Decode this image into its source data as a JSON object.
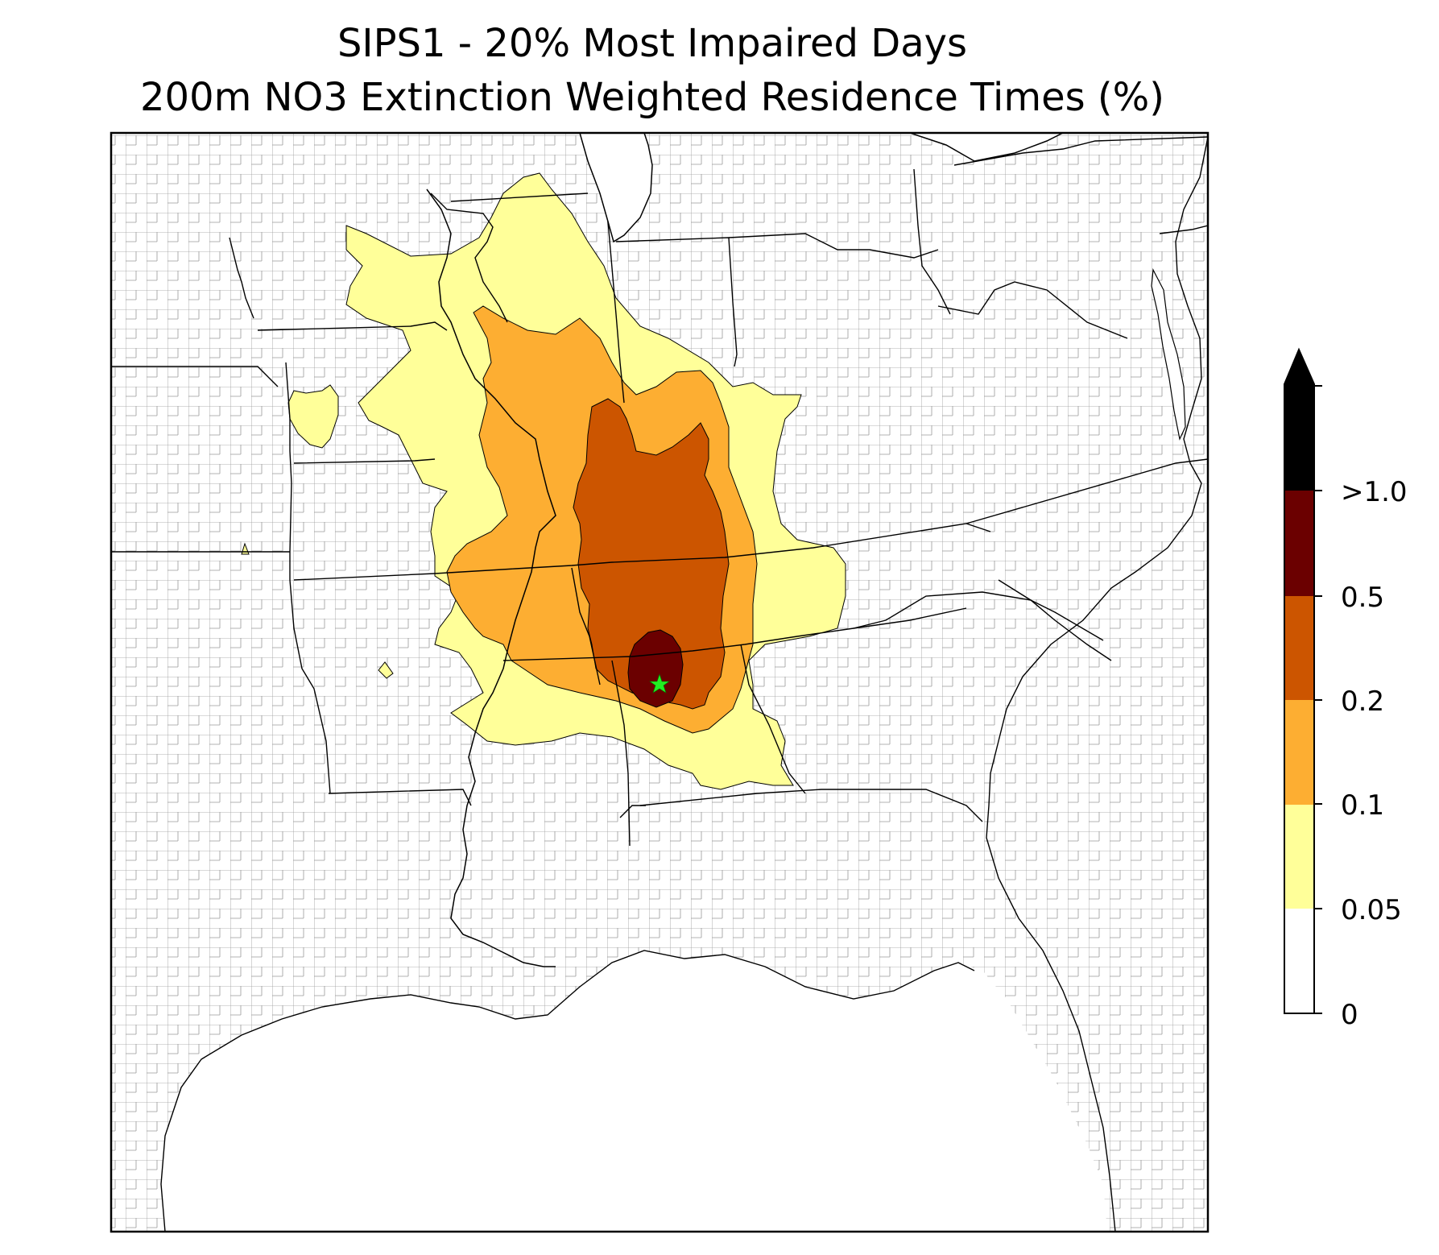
{
  "title": {
    "line1": "SIPS1 - 20% Most Impaired Days",
    "line2": "200m NO3 Extinction Weighted Residence Times (%)"
  },
  "legend": {
    "ticks": [
      "0",
      "0.05",
      "0.1",
      "0.2",
      "0.5",
      ">1.0"
    ],
    "bins": [
      {
        "from": "0",
        "to": "0.05",
        "color": "#ffffff"
      },
      {
        "from": "0.05",
        "to": "0.1",
        "color": "#ffff99"
      },
      {
        "from": "0.1",
        "to": "0.2",
        "color": "#fdae32"
      },
      {
        "from": "0.2",
        "to": "0.5",
        "color": "#cc5500"
      },
      {
        "from": "0.5",
        "to": "1.0",
        "color": "#6b0000"
      },
      {
        "from": "1.0",
        "to": "max",
        "color": "#000000"
      }
    ]
  },
  "site_marker": {
    "symbol": "star",
    "color": "#22ee22"
  }
}
